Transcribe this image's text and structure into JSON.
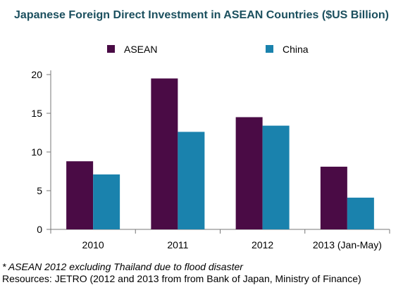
{
  "chart_data": {
    "type": "bar",
    "title": "Japanese Foreign Direct Investment in ASEAN Countries ($US Billion)",
    "categories": [
      "2010",
      "2011",
      "2012",
      "2013 (Jan-May)"
    ],
    "series": [
      {
        "name": "ASEAN",
        "values": [
          8.8,
          19.5,
          14.5,
          8.1
        ],
        "color": "#4a0b45"
      },
      {
        "name": "China",
        "values": [
          7.1,
          12.6,
          13.4,
          4.1
        ],
        "color": "#1a82ad"
      }
    ],
    "ylim": [
      0,
      20
    ],
    "yticks": [
      "0",
      "5",
      "10",
      "15",
      "20"
    ],
    "grid": false,
    "legend_position": "top",
    "title_color": "#1b4f5e",
    "axis_color": "#777777"
  },
  "footnotes": {
    "asean_note": "* ASEAN 2012 excluding Thailand due to flood disaster",
    "resources": "Resources: JETRO (2012 and 2013 from from Bank of Japan, Ministry of Finance)"
  }
}
